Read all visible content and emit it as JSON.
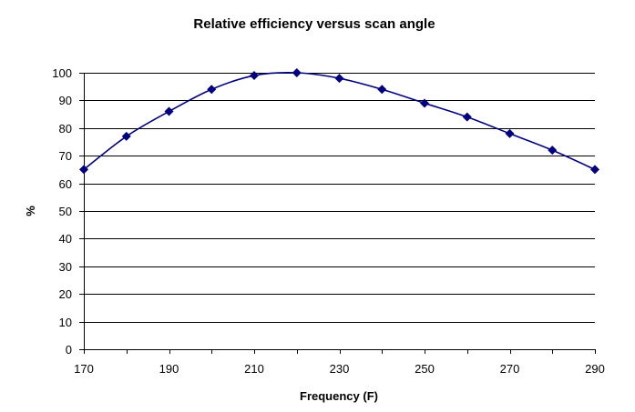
{
  "chart_data": {
    "type": "line",
    "title": "Relative efficiency versus scan angle",
    "xlabel": "Frequency (F)",
    "ylabel": "%",
    "x": [
      170,
      180,
      190,
      200,
      210,
      220,
      230,
      240,
      250,
      260,
      270,
      280,
      290
    ],
    "series": [
      {
        "values": [
          65,
          77,
          86,
          94,
          99,
          100,
          98,
          94,
          89,
          84,
          78,
          72,
          65
        ],
        "color": "#000080",
        "marker": "diamond"
      }
    ],
    "xlim": [
      170,
      290
    ],
    "ylim": [
      0,
      100
    ],
    "xticks": [
      170,
      190,
      210,
      230,
      250,
      270,
      290
    ],
    "yticks": [
      0,
      10,
      20,
      30,
      40,
      50,
      60,
      70,
      80,
      90,
      100
    ],
    "grid": "horizontal",
    "legend": "none"
  }
}
